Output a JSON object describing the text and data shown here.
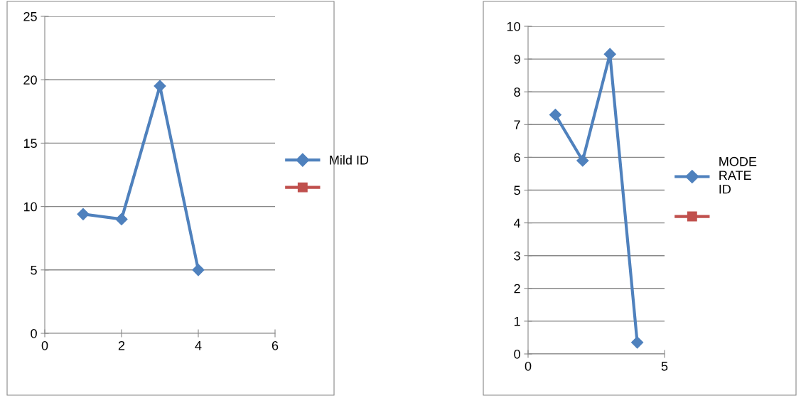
{
  "chart_data": [
    {
      "type": "line",
      "x": [
        1,
        2,
        3,
        4
      ],
      "xlim": [
        0,
        6
      ],
      "xticks": [
        0,
        2,
        4,
        6
      ],
      "ylim": [
        0,
        25
      ],
      "yticks": [
        0,
        5,
        10,
        15,
        20,
        25
      ],
      "grid": "y",
      "legend": "right",
      "series": [
        {
          "name": "Mild ID",
          "color": "#4f81bd",
          "marker": "diamond",
          "values": [
            9.4,
            9.0,
            19.5,
            5.0
          ]
        },
        {
          "color": "#c0504d",
          "marker": "square",
          "values": [
            null,
            null,
            null,
            null
          ]
        }
      ]
    },
    {
      "type": "line",
      "x": [
        1,
        2,
        3,
        4
      ],
      "xlim": [
        0,
        5
      ],
      "xticks": [
        0,
        5
      ],
      "ylim": [
        0,
        10
      ],
      "yticks": [
        0,
        1,
        2,
        3,
        4,
        5,
        6,
        7,
        8,
        9,
        10
      ],
      "grid": "y",
      "legend": "right",
      "series": [
        {
          "name": "MODERATE ID",
          "color": "#4f81bd",
          "marker": "diamond",
          "values": [
            7.3,
            5.9,
            9.15,
            0.35
          ]
        },
        {
          "color": "#c0504d",
          "marker": "square",
          "values": [
            null,
            null,
            null,
            null
          ]
        }
      ]
    }
  ]
}
